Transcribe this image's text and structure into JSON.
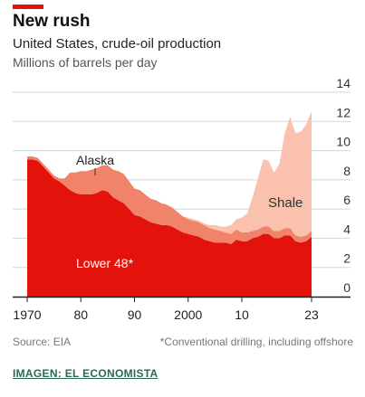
{
  "header": {
    "title": "New rush",
    "subtitle": "United States, crude-oil production",
    "units": "Millions of barrels per day"
  },
  "footer": {
    "source": "Source: EIA",
    "footnote": "*Conventional drilling, including offshore",
    "credit": "IMAGEN: EL ECONOMISTA"
  },
  "colors": {
    "lower48": "#e3120b",
    "alaska": "#f2836b",
    "shale": "#f9c1ae",
    "accent": "#e3120b"
  },
  "chart_data": {
    "type": "area",
    "stacked": true,
    "x_tick_labels": [
      "1970",
      "80",
      "90",
      "2000",
      "10",
      "23"
    ],
    "y_tick_labels": [
      "0",
      "2",
      "4",
      "6",
      "8",
      "10",
      "12",
      "14"
    ],
    "xlim": [
      1970,
      2023
    ],
    "ylim": [
      0,
      14
    ],
    "grid": true,
    "annotations": {
      "lower48": "Lower 48*",
      "alaska": "Alaska",
      "shale": "Shale"
    },
    "x": [
      1970,
      1971,
      1972,
      1973,
      1974,
      1975,
      1976,
      1977,
      1978,
      1979,
      1980,
      1981,
      1982,
      1983,
      1984,
      1985,
      1986,
      1987,
      1988,
      1989,
      1990,
      1991,
      1992,
      1993,
      1994,
      1995,
      1996,
      1997,
      1998,
      1999,
      2000,
      2001,
      2002,
      2003,
      2004,
      2005,
      2006,
      2007,
      2008,
      2009,
      2010,
      2011,
      2012,
      2013,
      2014,
      2015,
      2016,
      2017,
      2018,
      2019,
      2020,
      2021,
      2022,
      2023
    ],
    "series": [
      {
        "key": "lower48",
        "values": [
          9.4,
          9.4,
          9.3,
          8.9,
          8.5,
          8.1,
          7.9,
          7.6,
          7.3,
          7.1,
          7.0,
          7.0,
          7.0,
          7.1,
          7.3,
          7.2,
          6.8,
          6.6,
          6.4,
          6.0,
          5.6,
          5.5,
          5.3,
          5.1,
          5.0,
          4.9,
          4.9,
          4.8,
          4.6,
          4.4,
          4.3,
          4.2,
          4.1,
          3.9,
          3.8,
          3.7,
          3.7,
          3.7,
          3.6,
          3.9,
          3.8,
          3.8,
          4.0,
          4.1,
          4.3,
          4.3,
          4.0,
          4.0,
          4.2,
          4.2,
          3.8,
          3.7,
          3.8,
          4.1
        ]
      },
      {
        "key": "alaska",
        "values": [
          0.2,
          0.2,
          0.2,
          0.2,
          0.2,
          0.2,
          0.2,
          0.5,
          1.2,
          1.4,
          1.6,
          1.6,
          1.7,
          1.7,
          1.7,
          1.8,
          1.9,
          2.0,
          2.0,
          1.9,
          1.8,
          1.8,
          1.7,
          1.6,
          1.6,
          1.5,
          1.4,
          1.3,
          1.2,
          1.1,
          1.0,
          1.0,
          1.0,
          1.0,
          0.9,
          0.9,
          0.8,
          0.7,
          0.7,
          0.7,
          0.6,
          0.6,
          0.5,
          0.5,
          0.5,
          0.5,
          0.5,
          0.5,
          0.5,
          0.5,
          0.4,
          0.4,
          0.4,
          0.4
        ]
      },
      {
        "key": "shale",
        "values": [
          0.0,
          0.0,
          0.0,
          0.0,
          0.0,
          0.0,
          0.0,
          0.0,
          0.0,
          0.0,
          0.0,
          0.0,
          0.0,
          0.0,
          0.0,
          0.0,
          0.0,
          0.0,
          0.0,
          0.0,
          0.0,
          0.0,
          0.0,
          0.0,
          0.0,
          0.0,
          0.0,
          0.0,
          0.0,
          0.0,
          0.1,
          0.1,
          0.1,
          0.1,
          0.2,
          0.3,
          0.3,
          0.4,
          0.6,
          0.7,
          1.0,
          1.3,
          2.3,
          3.5,
          4.6,
          4.5,
          4.0,
          4.6,
          6.5,
          7.6,
          7.0,
          7.2,
          7.6,
          8.2
        ]
      }
    ]
  }
}
